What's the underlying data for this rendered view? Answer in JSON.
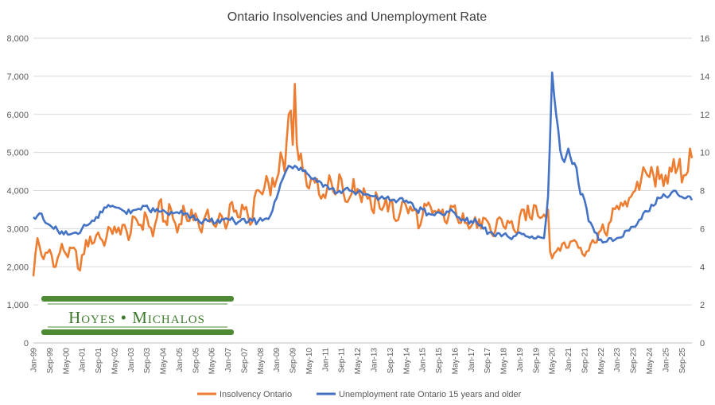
{
  "chart_data": {
    "type": "line",
    "title": "Ontario Insolvencies and Unemployment Rate",
    "x_start": "Jan-99",
    "x_end": "Feb-26",
    "x_tick_labels": [
      "Jan-99",
      "Sep-99",
      "May-00",
      "Jan-01",
      "Sep-01",
      "May-02",
      "Jan-03",
      "Sep-03",
      "May-04",
      "Jan-05",
      "Sep-05",
      "May-06",
      "Jan-07",
      "Sep-07",
      "May-08",
      "Jan-09",
      "Sep-09",
      "May-10",
      "Jan-11",
      "Sep-11",
      "May-12",
      "Jan-13",
      "Sep-13",
      "May-14",
      "Jan-15",
      "Sep-15",
      "May-16",
      "Jan-17",
      "Sep-17",
      "May-18",
      "Jan-19",
      "Sep-19",
      "May-20",
      "Jan-21",
      "Sep-21",
      "May-22",
      "Jan-23",
      "Sep-23",
      "May-24",
      "Jan-25",
      "Sep-25"
    ],
    "y_left": {
      "min": 0,
      "max": 8000,
      "ticks": [
        "0",
        "1,000",
        "2,000",
        "3,000",
        "4,000",
        "5,000",
        "6,000",
        "7,000",
        "8,000"
      ]
    },
    "y_right": {
      "min": 0,
      "max": 16,
      "ticks": [
        "0",
        "2",
        "4",
        "6",
        "8",
        "10",
        "12",
        "14",
        "16"
      ]
    },
    "gridlines": true,
    "legend_position": "bottom",
    "series": [
      {
        "name": "Insolvency Ontario",
        "axis": "left",
        "color": "#ED7D31",
        "anchors": [
          [
            "Jan-99",
            1750
          ],
          [
            "Mar-99",
            2750
          ],
          [
            "Jun-99",
            2200
          ],
          [
            "Sep-99",
            2450
          ],
          [
            "Dec-99",
            2000
          ],
          [
            "Mar-00",
            2600
          ],
          [
            "Jun-00",
            2250
          ],
          [
            "Sep-00",
            2500
          ],
          [
            "Dec-00",
            1900
          ],
          [
            "Mar-01",
            2700
          ],
          [
            "Jun-01",
            2600
          ],
          [
            "Sep-01",
            2900
          ],
          [
            "Dec-01",
            2550
          ],
          [
            "Mar-02",
            3000
          ],
          [
            "Jun-02",
            2900
          ],
          [
            "Sep-02",
            3100
          ],
          [
            "Dec-02",
            2700
          ],
          [
            "Mar-03",
            3300
          ],
          [
            "Jun-03",
            3100
          ],
          [
            "Sep-03",
            3300
          ],
          [
            "Dec-03",
            2800
          ],
          [
            "Mar-04",
            3700
          ],
          [
            "Jun-04",
            3200
          ],
          [
            "Sep-04",
            3500
          ],
          [
            "Dec-04",
            2900
          ],
          [
            "Mar-05",
            3600
          ],
          [
            "Jun-05",
            3200
          ],
          [
            "Sep-05",
            3400
          ],
          [
            "Dec-05",
            2900
          ],
          [
            "Mar-06",
            3500
          ],
          [
            "Jun-06",
            3100
          ],
          [
            "Sep-06",
            3400
          ],
          [
            "Dec-06",
            3000
          ],
          [
            "Mar-07",
            3700
          ],
          [
            "Jun-07",
            3300
          ],
          [
            "Sep-07",
            3500
          ],
          [
            "Dec-07",
            3100
          ],
          [
            "Mar-08",
            4000
          ],
          [
            "Jun-08",
            3900
          ],
          [
            "Sep-08",
            4200
          ],
          [
            "Dec-08",
            4100
          ],
          [
            "Mar-09",
            5000
          ],
          [
            "May-09",
            4500
          ],
          [
            "Jul-09",
            6000
          ],
          [
            "Aug-09",
            6100
          ],
          [
            "Sep-09",
            5200
          ],
          [
            "Oct-09",
            6800
          ],
          [
            "Nov-09",
            5200
          ],
          [
            "Dec-09",
            4800
          ],
          [
            "Mar-10",
            4500
          ],
          [
            "Jun-10",
            4300
          ],
          [
            "Sep-10",
            4300
          ],
          [
            "Dec-10",
            3900
          ],
          [
            "Mar-11",
            4400
          ],
          [
            "Jun-11",
            3900
          ],
          [
            "Sep-11",
            4300
          ],
          [
            "Dec-11",
            3700
          ],
          [
            "Mar-12",
            4300
          ],
          [
            "Jun-12",
            3900
          ],
          [
            "Sep-12",
            3900
          ],
          [
            "Dec-12",
            3500
          ],
          [
            "Mar-13",
            3800
          ],
          [
            "Jun-13",
            3600
          ],
          [
            "Sep-13",
            3700
          ],
          [
            "Dec-13",
            3200
          ],
          [
            "Mar-14",
            3700
          ],
          [
            "Jun-14",
            3400
          ],
          [
            "Sep-14",
            3500
          ],
          [
            "Dec-14",
            3100
          ],
          [
            "Mar-15",
            3600
          ],
          [
            "Jun-15",
            3400
          ],
          [
            "Sep-15",
            3500
          ],
          [
            "Dec-15",
            3200
          ],
          [
            "Mar-16",
            3600
          ],
          [
            "Jun-16",
            3300
          ],
          [
            "Sep-16",
            3400
          ],
          [
            "Dec-16",
            3000
          ],
          [
            "Mar-17",
            3300
          ],
          [
            "Jun-17",
            3000
          ],
          [
            "Sep-17",
            3200
          ],
          [
            "Dec-17",
            2800
          ],
          [
            "Mar-18",
            3300
          ],
          [
            "Jun-18",
            3000
          ],
          [
            "Sep-18",
            3200
          ],
          [
            "Dec-18",
            2900
          ],
          [
            "Mar-19",
            3500
          ],
          [
            "Jun-19",
            3300
          ],
          [
            "Sep-19",
            3600
          ],
          [
            "Dec-19",
            3300
          ],
          [
            "Mar-20",
            3500
          ],
          [
            "Apr-20",
            2400
          ],
          [
            "Jul-20",
            2400
          ],
          [
            "Oct-20",
            2600
          ],
          [
            "Jan-21",
            2500
          ],
          [
            "Apr-21",
            2700
          ],
          [
            "Jul-21",
            2500
          ],
          [
            "Oct-21",
            2400
          ],
          [
            "Jan-22",
            2700
          ],
          [
            "Apr-22",
            2900
          ],
          [
            "Jul-22",
            2900
          ],
          [
            "Oct-22",
            3200
          ],
          [
            "Jan-23",
            3600
          ],
          [
            "Apr-23",
            3600
          ],
          [
            "Jul-23",
            3800
          ],
          [
            "Oct-23",
            4000
          ],
          [
            "Jan-24",
            4300
          ],
          [
            "Apr-24",
            4400
          ],
          [
            "Jul-24",
            4400
          ],
          [
            "Oct-24",
            4300
          ],
          [
            "Jan-25",
            4400
          ],
          [
            "Apr-25",
            4500
          ],
          [
            "Jul-25",
            4600
          ],
          [
            "Oct-25",
            4400
          ],
          [
            "Dec-25",
            4500
          ],
          [
            "Jan-26",
            5100
          ],
          [
            "Feb-26",
            4850
          ]
        ]
      },
      {
        "name": "Unemployment rate Ontario 15 years and older",
        "axis": "right",
        "color": "#4472C4",
        "anchors": [
          [
            "Jan-99",
            6.6
          ],
          [
            "Apr-99",
            6.8
          ],
          [
            "Jul-99",
            6.3
          ],
          [
            "Oct-99",
            6.1
          ],
          [
            "Jan-00",
            5.9
          ],
          [
            "Apr-00",
            5.7
          ],
          [
            "Jul-00",
            5.7
          ],
          [
            "Oct-00",
            5.8
          ],
          [
            "Jan-01",
            6.0
          ],
          [
            "Apr-01",
            6.2
          ],
          [
            "Jul-01",
            6.4
          ],
          [
            "Oct-01",
            6.9
          ],
          [
            "Jan-02",
            7.1
          ],
          [
            "Apr-02",
            7.2
          ],
          [
            "Jul-02",
            7.1
          ],
          [
            "Oct-02",
            6.9
          ],
          [
            "Jan-03",
            6.8
          ],
          [
            "Apr-03",
            7.0
          ],
          [
            "Jul-03",
            7.2
          ],
          [
            "Oct-03",
            7.0
          ],
          [
            "Jan-04",
            6.9
          ],
          [
            "Apr-04",
            6.9
          ],
          [
            "Jul-04",
            6.8
          ],
          [
            "Oct-04",
            6.8
          ],
          [
            "Jan-05",
            6.8
          ],
          [
            "Apr-05",
            6.8
          ],
          [
            "Jul-05",
            6.6
          ],
          [
            "Oct-05",
            6.5
          ],
          [
            "Jan-06",
            6.4
          ],
          [
            "Apr-06",
            6.4
          ],
          [
            "Jul-06",
            6.3
          ],
          [
            "Oct-06",
            6.5
          ],
          [
            "Jan-07",
            6.5
          ],
          [
            "Apr-07",
            6.4
          ],
          [
            "Jul-07",
            6.4
          ],
          [
            "Oct-07",
            6.3
          ],
          [
            "Jan-08",
            6.4
          ],
          [
            "Apr-08",
            6.4
          ],
          [
            "Jul-08",
            6.5
          ],
          [
            "Oct-08",
            6.7
          ],
          [
            "Jan-09",
            7.6
          ],
          [
            "Apr-09",
            8.6
          ],
          [
            "Jul-09",
            9.3
          ],
          [
            "Oct-09",
            9.3
          ],
          [
            "Jan-10",
            9.2
          ],
          [
            "Apr-10",
            8.9
          ],
          [
            "Jul-10",
            8.6
          ],
          [
            "Oct-10",
            8.5
          ],
          [
            "Jan-11",
            8.3
          ],
          [
            "Apr-11",
            8.1
          ],
          [
            "Jul-11",
            7.9
          ],
          [
            "Oct-11",
            8.0
          ],
          [
            "Jan-12",
            8.0
          ],
          [
            "Apr-12",
            7.8
          ],
          [
            "Jul-12",
            7.9
          ],
          [
            "Oct-12",
            7.8
          ],
          [
            "Jan-13",
            7.7
          ],
          [
            "Apr-13",
            7.6
          ],
          [
            "Jul-13",
            7.6
          ],
          [
            "Oct-13",
            7.5
          ],
          [
            "Jan-14",
            7.5
          ],
          [
            "Apr-14",
            7.4
          ],
          [
            "Jul-14",
            7.4
          ],
          [
            "Oct-14",
            7.0
          ],
          [
            "Jan-15",
            7.0
          ],
          [
            "Apr-15",
            6.8
          ],
          [
            "Jul-15",
            6.7
          ],
          [
            "Oct-15",
            6.8
          ],
          [
            "Jan-16",
            6.9
          ],
          [
            "Apr-16",
            6.9
          ],
          [
            "Jul-16",
            6.6
          ],
          [
            "Oct-16",
            6.4
          ],
          [
            "Jan-17",
            6.4
          ],
          [
            "Apr-17",
            6.3
          ],
          [
            "Jul-17",
            6.0
          ],
          [
            "Oct-17",
            5.8
          ],
          [
            "Jan-18",
            5.6
          ],
          [
            "Apr-18",
            5.6
          ],
          [
            "Jul-18",
            5.6
          ],
          [
            "Oct-18",
            5.6
          ],
          [
            "Jan-19",
            5.8
          ],
          [
            "Apr-19",
            5.6
          ],
          [
            "Jul-19",
            5.6
          ],
          [
            "Oct-19",
            5.6
          ],
          [
            "Jan-20",
            5.5
          ],
          [
            "Mar-20",
            7.7
          ],
          [
            "May-20",
            14.2
          ],
          [
            "Jul-20",
            12.0
          ],
          [
            "Sep-20",
            10.1
          ],
          [
            "Nov-20",
            9.5
          ],
          [
            "Jan-21",
            10.2
          ],
          [
            "Mar-21",
            9.4
          ],
          [
            "May-21",
            9.2
          ],
          [
            "Jul-21",
            7.8
          ],
          [
            "Sep-21",
            7.5
          ],
          [
            "Nov-21",
            6.4
          ],
          [
            "Jan-22",
            6.1
          ],
          [
            "Apr-22",
            5.4
          ],
          [
            "Jul-22",
            5.3
          ],
          [
            "Oct-22",
            5.5
          ],
          [
            "Jan-23",
            5.5
          ],
          [
            "Apr-23",
            5.6
          ],
          [
            "Jul-23",
            5.9
          ],
          [
            "Oct-23",
            6.1
          ],
          [
            "Jan-24",
            6.5
          ],
          [
            "Apr-24",
            6.9
          ],
          [
            "Jul-24",
            7.2
          ],
          [
            "Oct-24",
            7.6
          ],
          [
            "Jan-25",
            7.7
          ],
          [
            "Apr-25",
            7.9
          ],
          [
            "Jul-25",
            7.8
          ],
          [
            "Oct-25",
            7.6
          ],
          [
            "Dec-25",
            7.7
          ],
          [
            "Feb-26",
            7.5
          ]
        ]
      }
    ]
  },
  "logo": {
    "text": "Hoyes • Michalos"
  }
}
